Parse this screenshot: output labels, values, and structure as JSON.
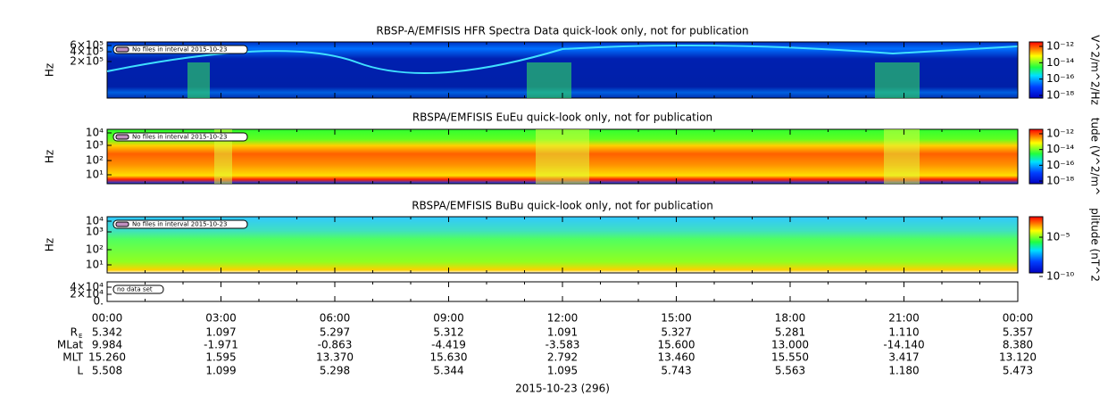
{
  "panels": [
    {
      "title": "RBSP-A/EMFISIS  HFR Spectra Data quick-look only, not for publication",
      "ylabel": "Hz",
      "yticks": [
        "6×10⁵",
        "4×10⁵",
        "2×10⁵"
      ],
      "note": "No files in interval 2015-10-23",
      "cbar_label": "V^2/m^2/Hz",
      "cbar_ticks": [
        "10⁻¹²",
        "10⁻¹⁴",
        "10⁻¹⁶",
        "10⁻¹⁸"
      ]
    },
    {
      "title": "RBSPA/EMFISIS  EuEu quick-look only, not for publication",
      "ylabel": "Hz",
      "yticks": [
        "10⁴",
        "10³",
        "10²",
        "10¹"
      ],
      "note": "No files in interval 2015-10-23",
      "cbar_label": "tude (V^2/m^",
      "cbar_ticks": [
        "10⁻¹²",
        "10⁻¹⁴",
        "10⁻¹⁶",
        "10⁻¹⁸"
      ]
    },
    {
      "title": "RBSPA/EMFISIS  BuBu quick-look only, not for publication",
      "ylabel": "Hz",
      "yticks": [
        "10⁴",
        "10³",
        "10²",
        "10¹"
      ],
      "note": "No files in interval 2015-10-23",
      "cbar_label": "plitude (nT^2",
      "cbar_ticks": [
        "10⁻⁵",
        "10⁻¹⁰"
      ]
    },
    {
      "yticks": [
        "4×10⁴",
        "2×10⁴",
        "0."
      ],
      "note": "no data set"
    }
  ],
  "ephemeris": {
    "times": [
      "00:00",
      "03:00",
      "06:00",
      "09:00",
      "12:00",
      "15:00",
      "18:00",
      "21:00",
      "00:00"
    ],
    "rows": [
      {
        "label": "R",
        "sub": "E",
        "values": [
          "5.342",
          "1.097",
          "5.297",
          "5.312",
          "1.091",
          "5.327",
          "5.281",
          "1.110",
          "5.357"
        ]
      },
      {
        "label": "MLat",
        "values": [
          "9.984",
          "-1.971",
          "-0.863",
          "-4.419",
          "-3.583",
          "15.600",
          "13.000",
          "-14.140",
          "8.380"
        ]
      },
      {
        "label": "MLT",
        "values": [
          "15.260",
          "1.595",
          "13.370",
          "15.630",
          "2.792",
          "13.460",
          "15.550",
          "3.417",
          "13.120"
        ]
      },
      {
        "label": "L",
        "values": [
          "5.508",
          "1.099",
          "5.298",
          "5.344",
          "1.095",
          "5.743",
          "5.563",
          "1.180",
          "5.473"
        ]
      }
    ]
  },
  "date": "2015-10-23 (296)"
}
